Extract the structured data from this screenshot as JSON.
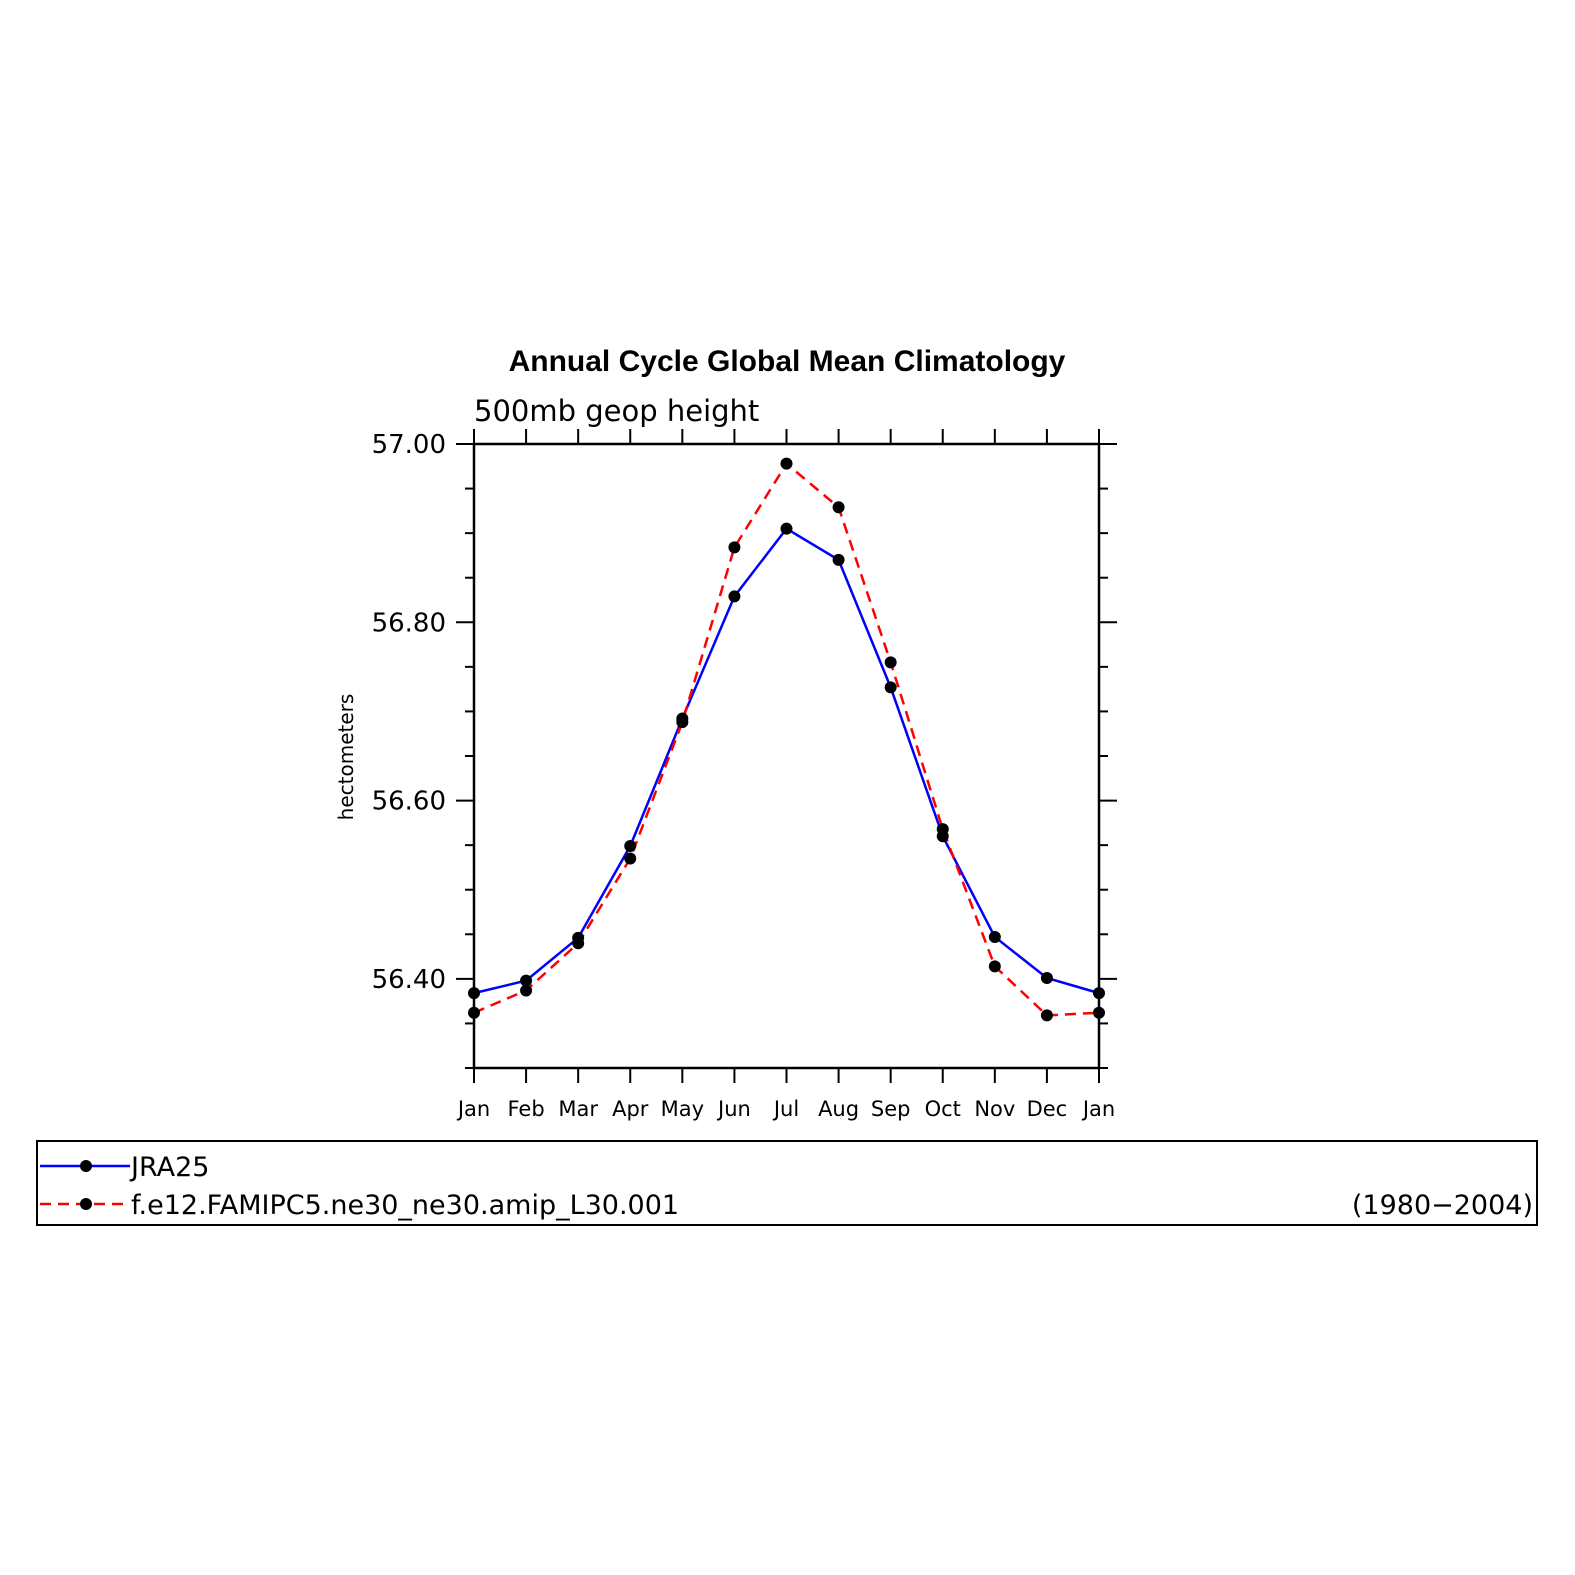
{
  "chart_data": {
    "type": "line",
    "title": "Annual Cycle Global Mean Climatology",
    "subtitle": "500mb geop height",
    "ylabel": "hectometers",
    "ylim": [
      56.3,
      57.0
    ],
    "yticks": [
      "57.00",
      "56.80",
      "56.60",
      "56.40"
    ],
    "categories": [
      "Jan",
      "Feb",
      "Mar",
      "Apr",
      "May",
      "Jun",
      "Jul",
      "Aug",
      "Sep",
      "Oct",
      "Nov",
      "Dec",
      "Jan"
    ],
    "series": [
      {
        "name": "JRA25",
        "color": "#0000ff",
        "style": "solid",
        "values": [
          56.384,
          56.398,
          56.446,
          56.549,
          56.692,
          56.829,
          56.905,
          56.87,
          56.727,
          56.56,
          56.447,
          56.401,
          56.384
        ]
      },
      {
        "name": "f.e12.FAMIPC5.ne30_ne30.amip_L30.001",
        "color": "#ff0000",
        "style": "dashed",
        "values": [
          56.362,
          56.387,
          56.44,
          56.535,
          56.688,
          56.884,
          56.978,
          56.929,
          56.755,
          56.568,
          56.414,
          56.359,
          56.362
        ]
      }
    ],
    "legend_note": "(1980−2004)"
  }
}
